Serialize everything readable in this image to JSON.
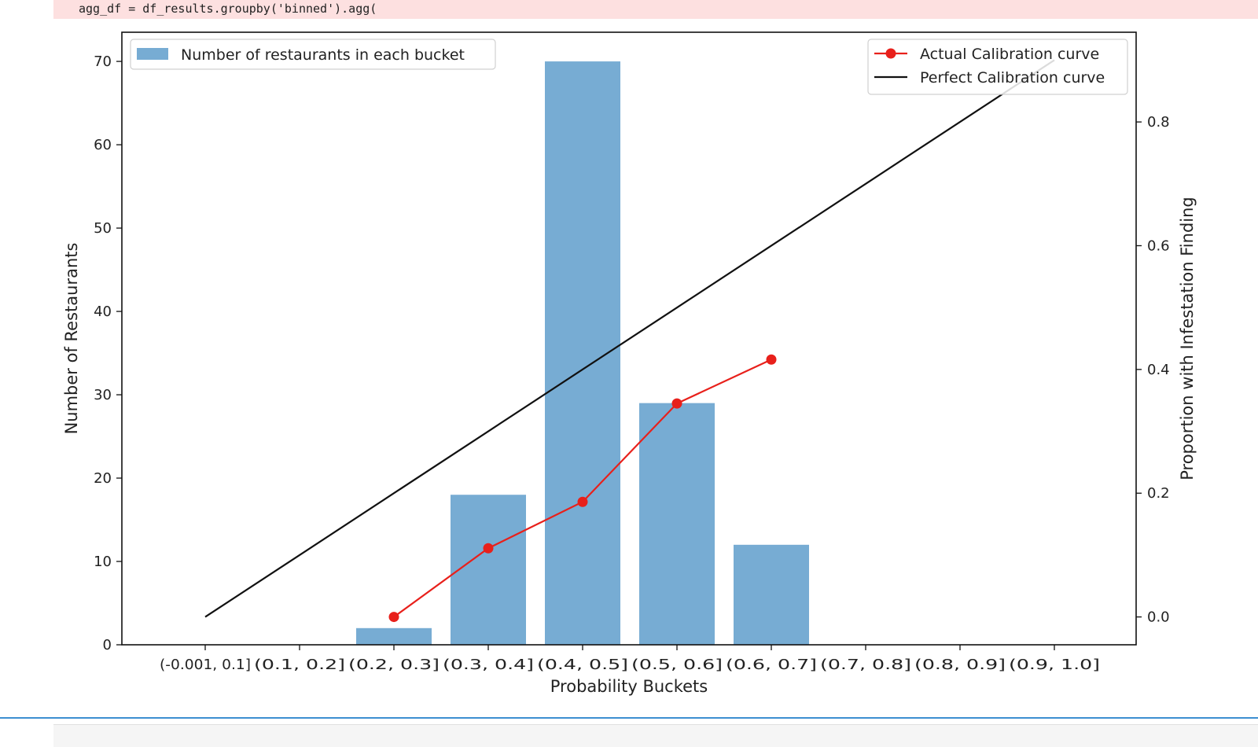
{
  "code": {
    "text": "agg_df = df_results.groupby('binned').agg("
  },
  "colors": {
    "bar": "#77acd3",
    "actual_line": "#e8201b",
    "perfect_line": "#111111",
    "code_bg": "#fde0e0",
    "cell_border": "#3d8fd1"
  },
  "chart_data": {
    "type": "bar",
    "title": "",
    "xlabel": "Probability Buckets",
    "ylabel": "Number of Restaurants",
    "y2label": "Proportion with Infestation Finding",
    "categories": [
      "(-0.001, 0.1]",
      "(0.1, 0.2]",
      "(0.2, 0.3]",
      "(0.3, 0.4]",
      "(0.4, 0.5]",
      "(0.5, 0.6]",
      "(0.6, 0.7]",
      "(0.7, 0.8]",
      "(0.8, 0.9]",
      "(0.9, 1.0]"
    ],
    "ylim": [
      0,
      73.5
    ],
    "yticks": [
      0,
      10,
      20,
      30,
      40,
      50,
      60,
      70
    ],
    "y2lim": [
      -0.045,
      0.945
    ],
    "y2ticks": [
      0.0,
      0.2,
      0.4,
      0.6,
      0.8
    ],
    "y2tick_labels": [
      "0.0",
      "0.2",
      "0.4",
      "0.6",
      "0.8"
    ],
    "grid": false,
    "series": [
      {
        "name": "Number of restaurants in each bucket",
        "type": "bar",
        "axis": "left",
        "values": [
          0,
          0,
          2,
          18,
          70,
          29,
          12,
          0,
          0,
          0
        ]
      },
      {
        "name": "Actual Calibration curve",
        "type": "line",
        "axis": "right",
        "marker": "circle",
        "values": [
          null,
          null,
          0.0,
          0.111,
          0.186,
          0.345,
          0.416,
          null,
          null,
          null
        ]
      },
      {
        "name": "Perfect Calibration curve",
        "type": "line",
        "axis": "right",
        "values": [
          0.0,
          0.1,
          0.2,
          0.3,
          0.4,
          0.5,
          0.6,
          0.7,
          0.8,
          0.9
        ]
      }
    ],
    "legend_left": {
      "placement": "top-left",
      "items": [
        "Number of restaurants in each bucket"
      ]
    },
    "legend_right": {
      "placement": "top-right",
      "items": [
        "Actual Calibration curve",
        "Perfect Calibration curve"
      ]
    }
  }
}
